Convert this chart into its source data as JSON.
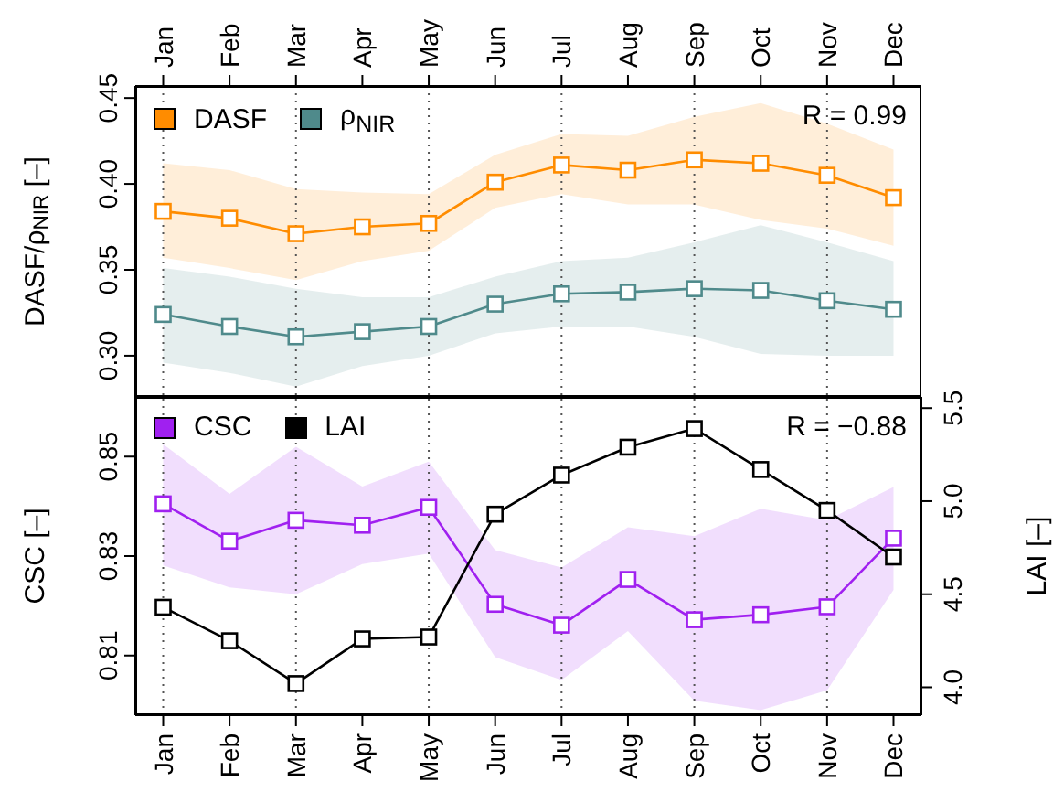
{
  "chart_data": [
    {
      "type": "line",
      "ylabel": "DASF/ρ$_{NIR}$ [–]",
      "categories": [
        "Jan",
        "Feb",
        "Mar",
        "Apr",
        "May",
        "Jun",
        "Jul",
        "Aug",
        "Sep",
        "Oct",
        "Nov",
        "Dec"
      ],
      "ylim": [
        0.276,
        0.457
      ],
      "yticks": [
        {
          "value": 0.3,
          "label": "0.30"
        },
        0.35,
        {
          "value": 0.4,
          "label": "0.40"
        },
        0.45
      ],
      "marker": "square",
      "legend": "top left",
      "annotations": [
        "R = 0.99"
      ],
      "ref_lines": [
        {
          "axis": "x",
          "value": "Jan",
          "line_style": "dotted"
        },
        {
          "axis": "x",
          "value": "Mar",
          "line_style": "dotted"
        },
        {
          "axis": "x",
          "value": "May",
          "line_style": "dotted"
        },
        {
          "axis": "x",
          "value": "Jul",
          "line_style": "dotted"
        },
        {
          "axis": "x",
          "value": "Sep",
          "line_style": "dotted"
        },
        {
          "axis": "x",
          "value": "Nov",
          "line_style": "dotted"
        }
      ],
      "series": [
        {
          "name": "DASF",
          "color": "#ff8c00",
          "values": [
            0.384,
            0.38,
            0.371,
            0.375,
            0.377,
            0.401,
            0.411,
            0.408,
            0.414,
            0.412,
            0.405,
            0.392
          ],
          "lower": [
            0.357,
            0.351,
            0.344,
            0.355,
            0.361,
            0.386,
            0.394,
            0.388,
            0.388,
            0.379,
            0.374,
            0.364
          ],
          "upper": [
            0.412,
            0.408,
            0.397,
            0.395,
            0.394,
            0.417,
            0.429,
            0.428,
            0.439,
            0.447,
            0.435,
            0.42
          ]
        },
        {
          "name": "ρ$_{NIR}$",
          "color": "#4f8a8b",
          "values": [
            0.324,
            0.317,
            0.311,
            0.314,
            0.317,
            0.33,
            0.336,
            0.337,
            0.339,
            0.338,
            0.332,
            0.327
          ],
          "lower": [
            0.296,
            0.29,
            0.282,
            0.294,
            0.3,
            0.313,
            0.317,
            0.317,
            0.311,
            0.301,
            0.3,
            0.3
          ],
          "upper": [
            0.351,
            0.346,
            0.339,
            0.334,
            0.334,
            0.346,
            0.355,
            0.357,
            0.366,
            0.376,
            0.366,
            0.355
          ]
        }
      ]
    },
    {
      "type": "line",
      "ylabel": "CSC [–]",
      "y2label": "LAI [–]",
      "categories": [
        "Jan",
        "Feb",
        "Mar",
        "Apr",
        "May",
        "Jun",
        "Jul",
        "Aug",
        "Sep",
        "Oct",
        "Nov",
        "Dec"
      ],
      "ylim": [
        0.798,
        0.862
      ],
      "yticks": [
        0.81,
        0.83,
        0.85
      ],
      "y2lim": [
        3.85,
        5.56
      ],
      "y2ticks": [
        {
          "value": 4,
          "label": "4.0"
        },
        4.5,
        {
          "value": 5,
          "label": "5.0"
        },
        5.5
      ],
      "marker": "square",
      "legend": "top left",
      "annotations": [
        "R = −0.88"
      ],
      "ref_lines": [
        {
          "axis": "x",
          "value": "Jan",
          "line_style": "dotted"
        },
        {
          "axis": "x",
          "value": "Mar",
          "line_style": "dotted"
        },
        {
          "axis": "x",
          "value": "May",
          "line_style": "dotted"
        },
        {
          "axis": "x",
          "value": "Jul",
          "line_style": "dotted"
        },
        {
          "axis": "x",
          "value": "Sep",
          "line_style": "dotted"
        },
        {
          "axis": "x",
          "value": "Nov",
          "line_style": "dotted"
        }
      ],
      "series": [
        {
          "name": "CSC",
          "color": "#a020f0",
          "values": [
            0.8405,
            0.833,
            0.8372,
            0.8362,
            0.8398,
            0.8203,
            0.8161,
            0.8253,
            0.8172,
            0.8182,
            0.8198,
            0.8336
          ],
          "lower": [
            0.8281,
            0.8237,
            0.8223,
            0.8284,
            0.8305,
            0.8097,
            0.8051,
            0.8149,
            0.8009,
            0.799,
            0.803,
            0.8232
          ],
          "upper": [
            0.8525,
            0.8425,
            0.852,
            0.844,
            0.849,
            0.8312,
            0.8277,
            0.8358,
            0.834,
            0.8395,
            0.8372,
            0.8439
          ]
        },
        {
          "name": "LAI",
          "color": "#000000",
          "axis": "y2",
          "values": [
            4.43,
            4.25,
            4.02,
            4.26,
            4.27,
            4.93,
            5.14,
            5.29,
            5.39,
            5.17,
            4.95,
            4.7
          ]
        }
      ]
    }
  ]
}
